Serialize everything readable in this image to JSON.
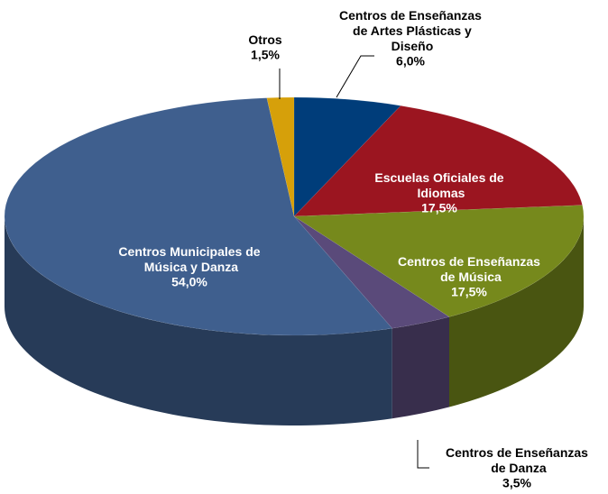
{
  "chart_data": {
    "type": "pie3d",
    "categories": [
      "Centros de Enseñanzas de Artes Plásticas y Diseño",
      "Escuelas Oficiales de Idiomas",
      "Centros de Enseñanzas de Música",
      "Centros de Enseñanzas de Danza",
      "Centros Municipales de Música y Danza",
      "Otros"
    ],
    "values": [
      6.0,
      17.5,
      17.5,
      3.5,
      54.0,
      1.5
    ],
    "value_labels": [
      "6,0%",
      "17,5%",
      "17,5%",
      "3,5%",
      "54,0%",
      "1,5%"
    ],
    "colors": [
      "#003d7a",
      "#9b1520",
      "#76891c",
      "#5a4a7a",
      "#3f5f8e",
      "#d6a00a"
    ]
  }
}
